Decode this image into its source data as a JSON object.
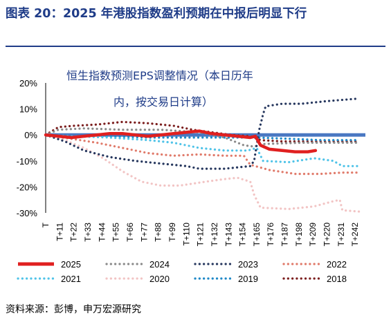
{
  "title": "图表 20：2025 年港股指数盈利预期在中报后明显下行",
  "source": "资料来源：彭博，申万宏源研究",
  "chart_data": {
    "type": "line",
    "annotation_lines": [
      "恒生指数预测EPS调整情况（本日历年",
      "内，按交易日计算）"
    ],
    "ylim": [
      -30,
      20
    ],
    "yticks": [
      20,
      10,
      0,
      -10,
      -20,
      -30
    ],
    "ytick_labels": [
      "20%",
      "10%",
      "0%",
      "-10%",
      "-20%",
      "-30%"
    ],
    "xlim": [
      0,
      250
    ],
    "x_ticks": [
      0,
      11,
      22,
      33,
      44,
      55,
      66,
      77,
      88,
      99,
      110,
      121,
      132,
      143,
      154,
      165,
      176,
      187,
      198,
      209,
      220,
      231,
      242
    ],
    "x_tick_labels": [
      "T",
      "T+11",
      "T+22",
      "T+33",
      "T+44",
      "T+55",
      "T+66",
      "T+77",
      "T+88",
      "T+99",
      "T+110",
      "T+121",
      "T+132",
      "T+143",
      "T+154",
      "T+165",
      "T+176",
      "T+187",
      "T+198",
      "T+209",
      "T+220",
      "T+231",
      "T+242"
    ],
    "legend_position": "bottom",
    "series": [
      {
        "name": "2018",
        "color": "#7b1d1d",
        "style": "dotted",
        "points": [
          [
            0,
            0
          ],
          [
            10,
            3
          ],
          [
            22,
            3.5
          ],
          [
            40,
            4
          ],
          [
            60,
            5
          ],
          [
            80,
            4.5
          ],
          [
            100,
            3.5
          ],
          [
            115,
            2
          ],
          [
            130,
            1
          ],
          [
            145,
            0
          ],
          [
            160,
            -0.5
          ],
          [
            168,
            -2
          ],
          [
            185,
            -2.5
          ],
          [
            200,
            -2.5
          ],
          [
            220,
            -2.5
          ],
          [
            245,
            -2.5
          ]
        ]
      },
      {
        "name": "2019",
        "color": "#1e88c7",
        "style": "dotted",
        "points": [
          [
            0,
            0
          ],
          [
            20,
            -0.5
          ],
          [
            50,
            -0.5
          ],
          [
            80,
            -1
          ],
          [
            110,
            -1
          ],
          [
            140,
            -1
          ],
          [
            165,
            -1
          ],
          [
            190,
            -1.5
          ],
          [
            215,
            -2
          ],
          [
            245,
            -2
          ]
        ]
      },
      {
        "name": "2020",
        "color": "#f2c4c4",
        "style": "dotted",
        "points": [
          [
            0,
            0
          ],
          [
            15,
            -2
          ],
          [
            30,
            -5
          ],
          [
            45,
            -9
          ],
          [
            60,
            -14
          ],
          [
            75,
            -18
          ],
          [
            90,
            -19.5
          ],
          [
            105,
            -19.5
          ],
          [
            125,
            -18
          ],
          [
            140,
            -17
          ],
          [
            150,
            -16.5
          ],
          [
            160,
            -18
          ],
          [
            163,
            -23
          ],
          [
            168,
            -28
          ],
          [
            190,
            -28.5
          ],
          [
            210,
            -27.5
          ],
          [
            225,
            -25.5
          ],
          [
            230,
            -25
          ],
          [
            232,
            -29
          ],
          [
            245,
            -29.5
          ]
        ]
      },
      {
        "name": "2021",
        "color": "#4fc3e8",
        "style": "dotted",
        "points": [
          [
            0,
            0
          ],
          [
            20,
            -0.5
          ],
          [
            50,
            -1
          ],
          [
            80,
            -2
          ],
          [
            100,
            -3
          ],
          [
            120,
            -5
          ],
          [
            140,
            -6
          ],
          [
            158,
            -6
          ],
          [
            165,
            -5
          ],
          [
            170,
            -10
          ],
          [
            190,
            -10.5
          ],
          [
            210,
            -9
          ],
          [
            225,
            -10
          ],
          [
            232,
            -12
          ],
          [
            245,
            -12
          ]
        ]
      },
      {
        "name": "2022",
        "color": "#e07a6a",
        "style": "dotted",
        "points": [
          [
            0,
            0
          ],
          [
            20,
            -1.5
          ],
          [
            40,
            -3
          ],
          [
            60,
            -5
          ],
          [
            80,
            -7
          ],
          [
            100,
            -8
          ],
          [
            120,
            -7.5
          ],
          [
            140,
            -8
          ],
          [
            155,
            -8
          ],
          [
            160,
            -11.5
          ],
          [
            175,
            -13.5
          ],
          [
            195,
            -15
          ],
          [
            215,
            -15
          ],
          [
            232,
            -14.5
          ],
          [
            245,
            -14.5
          ]
        ]
      },
      {
        "name": "2023",
        "color": "#26375e",
        "style": "dotted",
        "points": [
          [
            0,
            0
          ],
          [
            15,
            -2.5
          ],
          [
            30,
            -6
          ],
          [
            50,
            -8.5
          ],
          [
            70,
            -10
          ],
          [
            90,
            -11
          ],
          [
            110,
            -12
          ],
          [
            120,
            -13
          ],
          [
            140,
            -13
          ],
          [
            160,
            -12
          ],
          [
            163,
            -10
          ],
          [
            165,
            -4
          ],
          [
            167,
            2
          ],
          [
            170,
            8
          ],
          [
            172,
            11
          ],
          [
            185,
            12
          ],
          [
            200,
            12
          ],
          [
            220,
            13
          ],
          [
            245,
            14
          ]
        ]
      },
      {
        "name": "2024",
        "color": "#8a8a8a",
        "style": "dotted",
        "points": [
          [
            0,
            0
          ],
          [
            10,
            2
          ],
          [
            30,
            2.5
          ],
          [
            60,
            2
          ],
          [
            90,
            2
          ],
          [
            120,
            1
          ],
          [
            140,
            -1
          ],
          [
            155,
            -4
          ],
          [
            163,
            -4.5
          ],
          [
            170,
            -3.5
          ],
          [
            200,
            -3
          ],
          [
            220,
            -3
          ],
          [
            245,
            -3
          ]
        ]
      },
      {
        "name": "2025",
        "color": "#e02020",
        "style": "solid",
        "points": [
          [
            0,
            0
          ],
          [
            10,
            -0.5
          ],
          [
            20,
            -1
          ],
          [
            30,
            -0.5
          ],
          [
            40,
            0
          ],
          [
            50,
            0.5
          ],
          [
            60,
            0.5
          ],
          [
            70,
            0
          ],
          [
            80,
            -0.5
          ],
          [
            90,
            0
          ],
          [
            100,
            0.5
          ],
          [
            110,
            1
          ],
          [
            120,
            1.5
          ],
          [
            130,
            0.5
          ],
          [
            140,
            0
          ],
          [
            150,
            -0.5
          ],
          [
            160,
            -1
          ],
          [
            164,
            -0.5
          ],
          [
            168,
            -4
          ],
          [
            175,
            -5.5
          ],
          [
            185,
            -6
          ],
          [
            195,
            -6.5
          ],
          [
            205,
            -6.5
          ],
          [
            211,
            -6
          ]
        ]
      }
    ]
  }
}
